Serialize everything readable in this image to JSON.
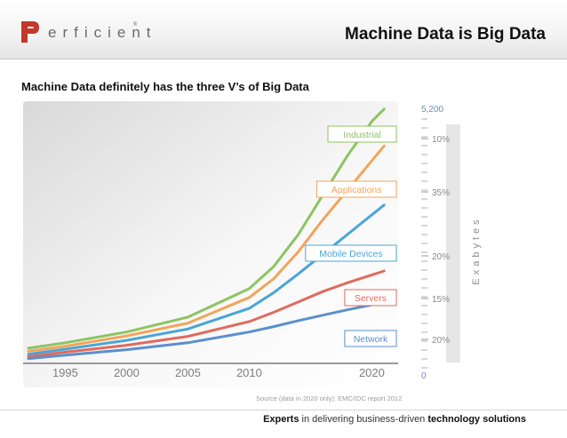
{
  "header": {
    "brand": "erficient",
    "brand_tm": "®",
    "title": "Machine Data is Big Data"
  },
  "subtitle": "Machine Data definitely has the three V’s of Big Data",
  "footer": {
    "emphasis_1": "Experts",
    "middle": " in delivering business-driven ",
    "emphasis_2": "technology solutions"
  },
  "colors": {
    "logo_red": "#c0392b",
    "industrial": "#8cc462",
    "applications": "#f2a45a",
    "mobile": "#4aa5d6",
    "servers": "#e06a5d",
    "network": "#5b8fcf",
    "axis_text": "#6b8fb5",
    "band": "#e6e6e6"
  },
  "chart_data": {
    "type": "line",
    "ylabel": "Exabytes",
    "ymax_label": "5,200",
    "ymin_label": "0",
    "ylim": [
      0,
      5200
    ],
    "xlim": [
      1992,
      2022
    ],
    "x_ticks": [
      "1995",
      "2000",
      "2005",
      "2010",
      "2020"
    ],
    "x": [
      1992,
      1995,
      2000,
      2005,
      2010,
      2012,
      2014,
      2016,
      2018,
      2020,
      2021
    ],
    "source": "Source (data in 2020 only): EMC/IDC report 2012",
    "series": [
      {
        "name": "Industrial",
        "share": "10%",
        "color": "#8cc462",
        "values": [
          290,
          400,
          620,
          920,
          1500,
          1950,
          2600,
          3400,
          4200,
          4900,
          5150
        ]
      },
      {
        "name": "Applications",
        "share": "35%",
        "color": "#f2a45a",
        "values": [
          230,
          330,
          540,
          800,
          1320,
          1700,
          2250,
          2900,
          3500,
          4100,
          4400
        ]
      },
      {
        "name": "Mobile Devices",
        "share": "20%",
        "color": "#4aa5d6",
        "values": [
          170,
          270,
          450,
          680,
          1100,
          1420,
          1800,
          2200,
          2600,
          3000,
          3200
        ]
      },
      {
        "name": "Servers",
        "share": "15%",
        "color": "#e06a5d",
        "values": [
          120,
          210,
          350,
          530,
          830,
          1020,
          1230,
          1440,
          1620,
          1780,
          1860
        ]
      },
      {
        "name": "Network",
        "share": "20%",
        "color": "#5b8fcf",
        "values": [
          80,
          150,
          260,
          400,
          620,
          730,
          850,
          960,
          1070,
          1170,
          1220
        ]
      }
    ]
  }
}
